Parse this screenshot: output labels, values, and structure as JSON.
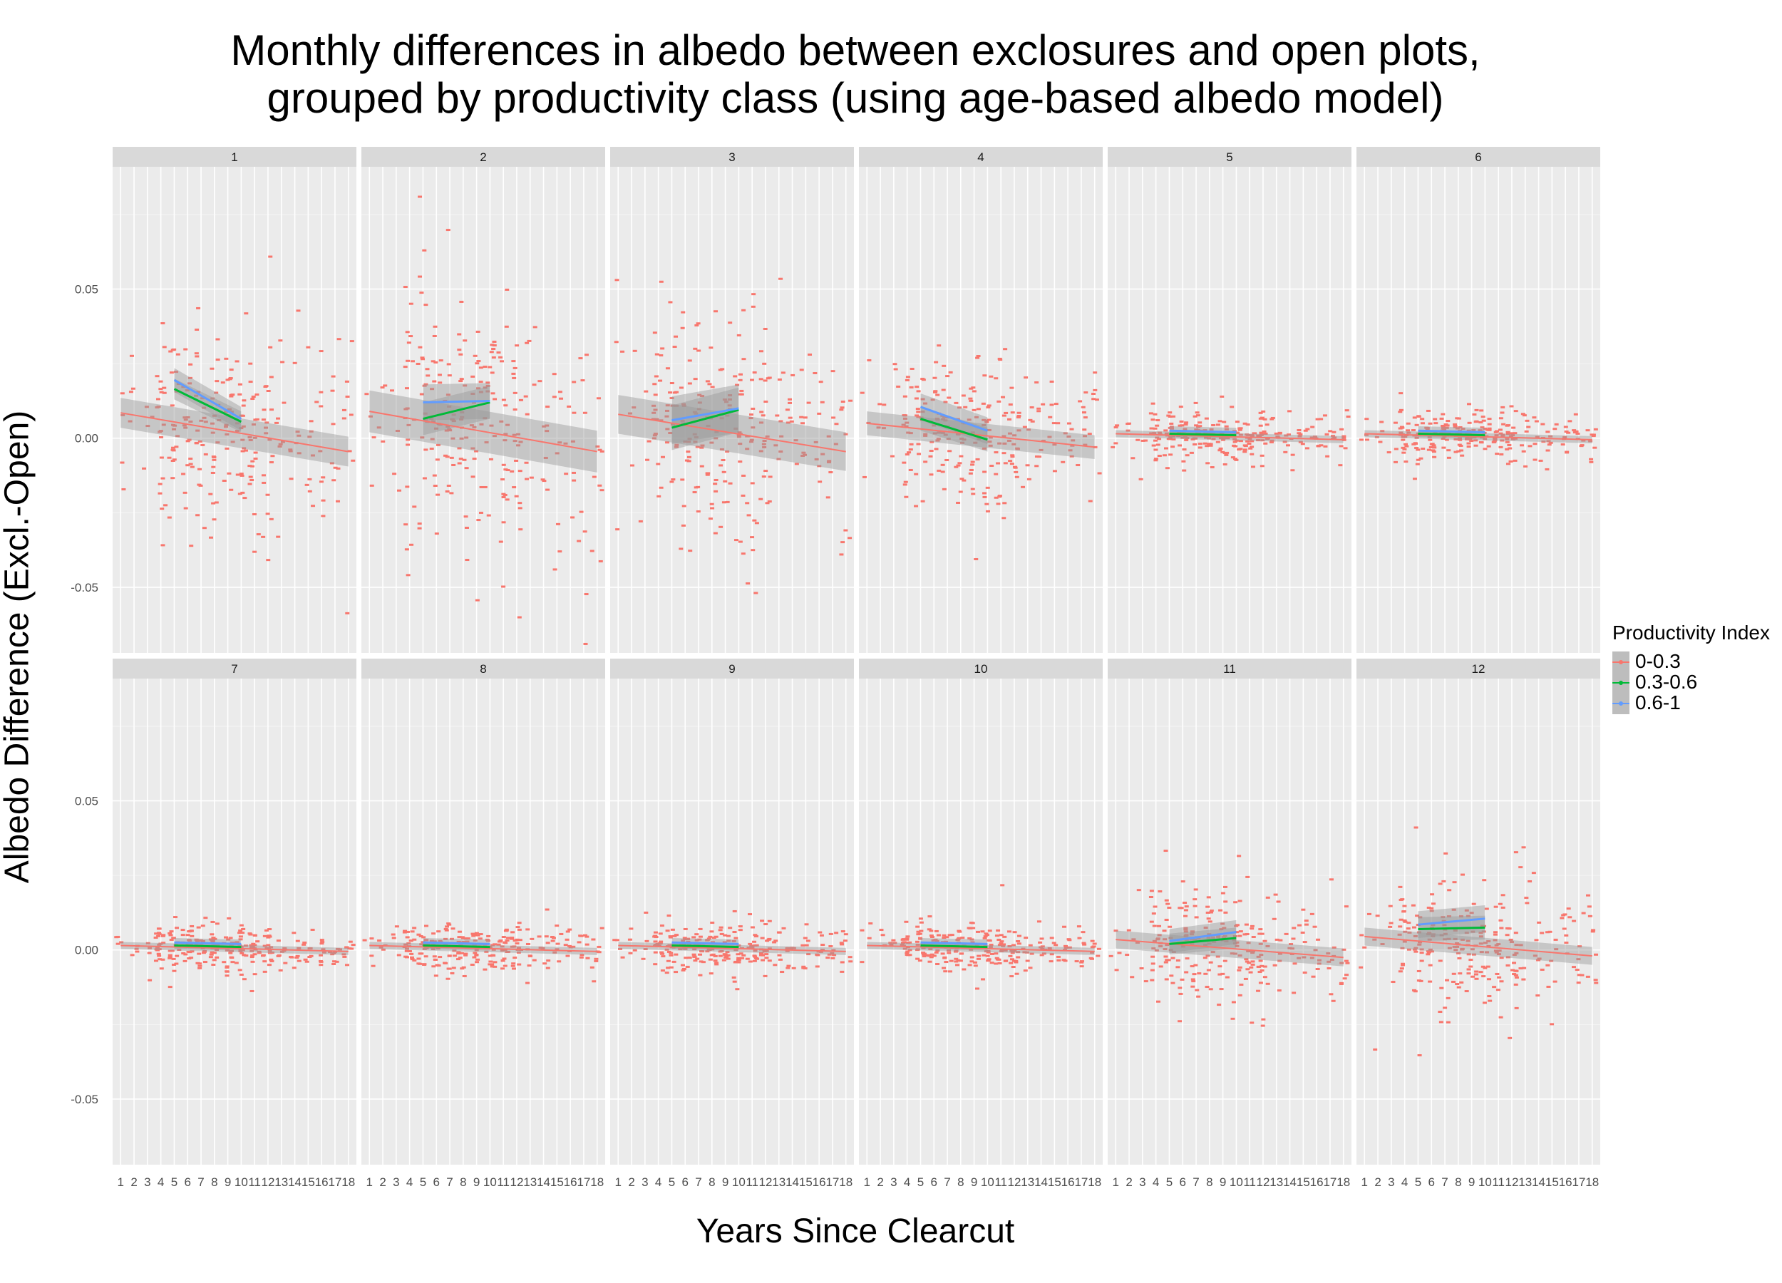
{
  "chart_data": {
    "type": "scatter",
    "title": [
      "Monthly differences in albedo between exclosures and open plots,",
      "grouped by productivity class (using age-based albedo model)"
    ],
    "xlabel": "Years Since Clearcut",
    "ylabel": "Albedo Difference (Excl.-Open)",
    "x_categories": [
      "1",
      "2",
      "3",
      "4",
      "5",
      "6",
      "7",
      "8",
      "9",
      "10",
      "11",
      "12",
      "13",
      "14",
      "15",
      "16",
      "17",
      "18"
    ],
    "yticks": [
      {
        "value": 0.05,
        "label": "0.05"
      },
      {
        "value": 0.0,
        "label": "0.00"
      },
      {
        "value": -0.05,
        "label": "-0.05"
      }
    ],
    "ylim": [
      -0.072,
      0.091
    ],
    "grid": true,
    "legend": {
      "title": "Productivity Index",
      "position": "right",
      "entries": [
        {
          "label": "0-0.3",
          "color": "#F8766D"
        },
        {
          "label": "0.3-0.6",
          "color": "#00BA38"
        },
        {
          "label": "0.6-1",
          "color": "#619CFF"
        }
      ]
    },
    "facets": [
      {
        "label": "1",
        "spread": 0.016,
        "trend": [
          {
            "name": "0-0.3",
            "x": [
              1,
              18
            ],
            "y": [
              0.0085,
              -0.0045
            ],
            "band": 0.005
          },
          {
            "name": "0.3-0.6",
            "x": [
              5,
              10
            ],
            "y": [
              0.0165,
              0.0055
            ],
            "band": 0.0035
          },
          {
            "name": "0.6-1",
            "x": [
              5,
              10
            ],
            "y": [
              0.0195,
              0.0065
            ],
            "band": 0.004
          }
        ]
      },
      {
        "label": "2",
        "spread": 0.02,
        "trend": [
          {
            "name": "0-0.3",
            "x": [
              1,
              18
            ],
            "y": [
              0.009,
              -0.0045
            ],
            "band": 0.007
          },
          {
            "name": "0.3-0.6",
            "x": [
              5,
              10
            ],
            "y": [
              0.0065,
              0.012
            ],
            "band": 0.0055
          },
          {
            "name": "0.6-1",
            "x": [
              5,
              10
            ],
            "y": [
              0.012,
              0.0125
            ],
            "band": 0.006
          }
        ]
      },
      {
        "label": "3",
        "spread": 0.02,
        "trend": [
          {
            "name": "0-0.3",
            "x": [
              1,
              18
            ],
            "y": [
              0.008,
              -0.0045
            ],
            "band": 0.0065
          },
          {
            "name": "0.3-0.6",
            "x": [
              5,
              10
            ],
            "y": [
              0.0035,
              0.0095
            ],
            "band": 0.0075
          },
          {
            "name": "0.6-1",
            "x": [
              5,
              10
            ],
            "y": [
              0.006,
              0.01
            ],
            "band": 0.008
          }
        ]
      },
      {
        "label": "4",
        "spread": 0.012,
        "trend": [
          {
            "name": "0-0.3",
            "x": [
              1,
              18
            ],
            "y": [
              0.005,
              -0.003
            ],
            "band": 0.004
          },
          {
            "name": "0.3-0.6",
            "x": [
              5,
              10
            ],
            "y": [
              0.0065,
              -0.0005
            ],
            "band": 0.004
          },
          {
            "name": "0.6-1",
            "x": [
              5,
              10
            ],
            "y": [
              0.0105,
              0.0025
            ],
            "band": 0.0045
          }
        ]
      },
      {
        "label": "5",
        "spread": 0.004,
        "trend": [
          {
            "name": "0-0.3",
            "x": [
              1,
              18
            ],
            "y": [
              0.0015,
              -0.0005
            ],
            "band": 0.0012
          },
          {
            "name": "0.3-0.6",
            "x": [
              5,
              10
            ],
            "y": [
              0.0015,
              0.001
            ],
            "band": 0.0012
          },
          {
            "name": "0.6-1",
            "x": [
              5,
              10
            ],
            "y": [
              0.0025,
              0.002
            ],
            "band": 0.0015
          }
        ]
      },
      {
        "label": "6",
        "spread": 0.004,
        "trend": [
          {
            "name": "0-0.3",
            "x": [
              1,
              18
            ],
            "y": [
              0.0015,
              -0.0005
            ],
            "band": 0.0012
          },
          {
            "name": "0.3-0.6",
            "x": [
              5,
              10
            ],
            "y": [
              0.0015,
              0.001
            ],
            "band": 0.0012
          },
          {
            "name": "0.6-1",
            "x": [
              5,
              10
            ],
            "y": [
              0.0025,
              0.002
            ],
            "band": 0.0015
          }
        ]
      },
      {
        "label": "7",
        "spread": 0.004,
        "trend": [
          {
            "name": "0-0.3",
            "x": [
              1,
              18
            ],
            "y": [
              0.0015,
              -0.0005
            ],
            "band": 0.0012
          },
          {
            "name": "0.3-0.6",
            "x": [
              5,
              10
            ],
            "y": [
              0.0015,
              0.001
            ],
            "band": 0.0012
          },
          {
            "name": "0.6-1",
            "x": [
              5,
              10
            ],
            "y": [
              0.0025,
              0.002
            ],
            "band": 0.0015
          }
        ]
      },
      {
        "label": "8",
        "spread": 0.004,
        "trend": [
          {
            "name": "0-0.3",
            "x": [
              1,
              18
            ],
            "y": [
              0.0015,
              -0.0005
            ],
            "band": 0.0012
          },
          {
            "name": "0.3-0.6",
            "x": [
              5,
              10
            ],
            "y": [
              0.0015,
              0.001
            ],
            "band": 0.0012
          },
          {
            "name": "0.6-1",
            "x": [
              5,
              10
            ],
            "y": [
              0.0025,
              0.002
            ],
            "band": 0.0015
          }
        ]
      },
      {
        "label": "9",
        "spread": 0.004,
        "trend": [
          {
            "name": "0-0.3",
            "x": [
              1,
              18
            ],
            "y": [
              0.0015,
              -0.0005
            ],
            "band": 0.0012
          },
          {
            "name": "0.3-0.6",
            "x": [
              5,
              10
            ],
            "y": [
              0.0015,
              0.001
            ],
            "band": 0.0012
          },
          {
            "name": "0.6-1",
            "x": [
              5,
              10
            ],
            "y": [
              0.0025,
              0.002
            ],
            "band": 0.0015
          }
        ]
      },
      {
        "label": "10",
        "spread": 0.004,
        "trend": [
          {
            "name": "0-0.3",
            "x": [
              1,
              18
            ],
            "y": [
              0.0015,
              -0.0005
            ],
            "band": 0.0012
          },
          {
            "name": "0.3-0.6",
            "x": [
              5,
              10
            ],
            "y": [
              0.0015,
              0.001
            ],
            "band": 0.0012
          },
          {
            "name": "0.6-1",
            "x": [
              5,
              10
            ],
            "y": [
              0.0025,
              0.002
            ],
            "band": 0.0015
          }
        ]
      },
      {
        "label": "11",
        "spread": 0.009,
        "trend": [
          {
            "name": "0-0.3",
            "x": [
              1,
              18
            ],
            "y": [
              0.0035,
              -0.0025
            ],
            "band": 0.003
          },
          {
            "name": "0.3-0.6",
            "x": [
              5,
              10
            ],
            "y": [
              0.002,
              0.004
            ],
            "band": 0.0035
          },
          {
            "name": "0.6-1",
            "x": [
              5,
              10
            ],
            "y": [
              0.003,
              0.006
            ],
            "band": 0.004
          }
        ]
      },
      {
        "label": "12",
        "spread": 0.01,
        "trend": [
          {
            "name": "0-0.3",
            "x": [
              1,
              18
            ],
            "y": [
              0.0045,
              -0.002
            ],
            "band": 0.003
          },
          {
            "name": "0.3-0.6",
            "x": [
              5,
              10
            ],
            "y": [
              0.007,
              0.0075
            ],
            "band": 0.004
          },
          {
            "name": "0.6-1",
            "x": [
              5,
              10
            ],
            "y": [
              0.0085,
              0.0105
            ],
            "band": 0.0045
          }
        ]
      }
    ]
  }
}
